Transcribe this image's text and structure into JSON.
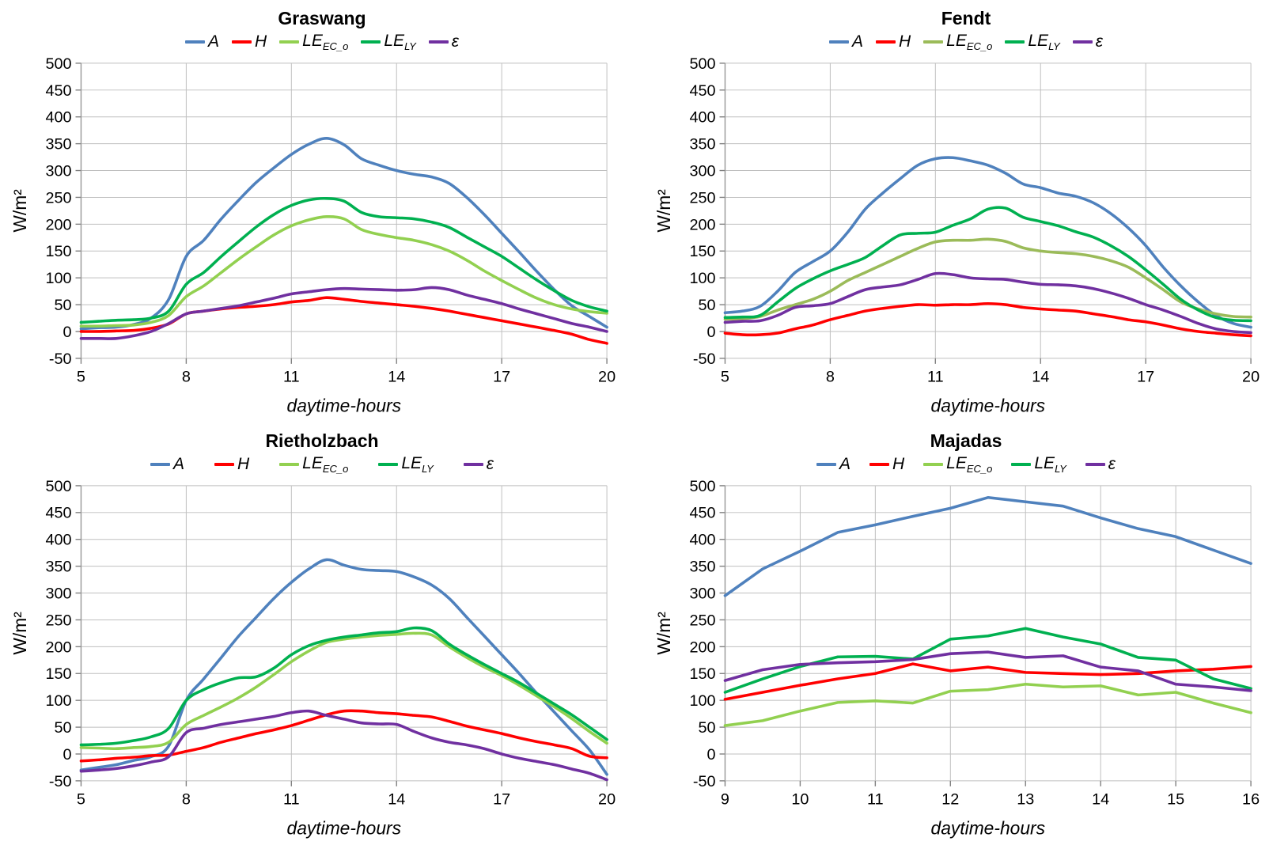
{
  "figure": {
    "ylabel": "W/m²",
    "xlabel": "daytime-hours",
    "colors": {
      "A": "#4F81BD",
      "H": "#FF0000",
      "LE_EC_o": "#92D050",
      "LE_EC_o_fendt": "#9BBB59",
      "LE_LY": "#00B050",
      "epsilon": "#7030A0",
      "gridline": "#BFBFBF",
      "axis": "#969696",
      "tick": "#808080"
    }
  },
  "chart_data": [
    {
      "type": "line",
      "title": "Graswang",
      "xlabel": "daytime-hours",
      "ylabel": "W/m²",
      "xlim": [
        5,
        20
      ],
      "ylim": [
        -50,
        500
      ],
      "xticks": [
        5,
        8,
        11,
        14,
        17,
        20
      ],
      "ytick_step": 50,
      "x_start": 5,
      "x_step": 0.5,
      "smooth": true,
      "legend": [
        {
          "name": "A",
          "sub": "",
          "color": "#4F81BD"
        },
        {
          "name": "H",
          "sub": "",
          "color": "#FF0000"
        },
        {
          "name": "LE",
          "sub": "EC_o",
          "color": "#92D050"
        },
        {
          "name": "LE",
          "sub": "LY",
          "color": "#00B050"
        },
        {
          "name": "ε",
          "sub": "",
          "color": "#7030A0"
        }
      ],
      "series": [
        {
          "name": "A",
          "color": "#4F81BD",
          "values": [
            5,
            7,
            8,
            13,
            25,
            60,
            140,
            170,
            210,
            245,
            278,
            305,
            330,
            349,
            360,
            348,
            322,
            310,
            300,
            293,
            288,
            276,
            250,
            218,
            183,
            148,
            112,
            78,
            48,
            28,
            8
          ]
        },
        {
          "name": "H",
          "color": "#FF0000",
          "values": [
            0,
            0,
            1,
            2,
            6,
            14,
            33,
            38,
            42,
            45,
            47,
            50,
            55,
            58,
            63,
            60,
            56,
            53,
            50,
            47,
            43,
            38,
            32,
            26,
            20,
            14,
            8,
            2,
            -5,
            -15,
            -22
          ]
        },
        {
          "name": "LE_EC_o",
          "color": "#92D050",
          "values": [
            10,
            10,
            11,
            12,
            17,
            30,
            65,
            85,
            110,
            135,
            158,
            180,
            197,
            208,
            214,
            210,
            190,
            181,
            175,
            170,
            162,
            150,
            133,
            113,
            95,
            78,
            62,
            50,
            42,
            37,
            34
          ]
        },
        {
          "name": "LE_LY",
          "color": "#00B050",
          "values": [
            17,
            19,
            21,
            22,
            25,
            38,
            88,
            110,
            140,
            168,
            195,
            218,
            235,
            245,
            248,
            243,
            222,
            214,
            212,
            210,
            204,
            194,
            176,
            158,
            140,
            118,
            96,
            76,
            58,
            46,
            38
          ]
        },
        {
          "name": "ε",
          "color": "#7030A0",
          "values": [
            -13,
            -13,
            -13,
            -8,
            0,
            15,
            33,
            38,
            43,
            48,
            55,
            62,
            70,
            74,
            78,
            80,
            79,
            78,
            77,
            78,
            82,
            78,
            68,
            60,
            52,
            42,
            33,
            24,
            15,
            8,
            0
          ]
        }
      ]
    },
    {
      "type": "line",
      "title": "Fendt",
      "xlabel": "daytime-hours",
      "ylabel": "W/m²",
      "xlim": [
        5,
        20
      ],
      "ylim": [
        -50,
        500
      ],
      "xticks": [
        5,
        8,
        11,
        14,
        17,
        20
      ],
      "ytick_step": 50,
      "x_start": 5,
      "x_step": 0.5,
      "smooth": true,
      "legend": [
        {
          "name": "A",
          "sub": "",
          "color": "#4F81BD"
        },
        {
          "name": "H",
          "sub": "",
          "color": "#FF0000"
        },
        {
          "name": "LE",
          "sub": "EC_o",
          "color": "#9BBB59"
        },
        {
          "name": "LE",
          "sub": "LY",
          "color": "#00B050"
        },
        {
          "name": "ε",
          "sub": "",
          "color": "#7030A0"
        }
      ],
      "series": [
        {
          "name": "A",
          "color": "#4F81BD",
          "values": [
            35,
            38,
            47,
            75,
            110,
            130,
            150,
            185,
            228,
            258,
            285,
            310,
            322,
            324,
            318,
            310,
            295,
            275,
            268,
            258,
            252,
            240,
            220,
            193,
            160,
            120,
            85,
            55,
            30,
            15,
            8
          ]
        },
        {
          "name": "H",
          "color": "#FF0000",
          "values": [
            -3,
            -6,
            -6,
            -3,
            5,
            12,
            22,
            30,
            38,
            43,
            47,
            50,
            49,
            50,
            50,
            52,
            50,
            45,
            42,
            40,
            38,
            33,
            28,
            22,
            18,
            12,
            5,
            0,
            -3,
            -6,
            -8
          ]
        },
        {
          "name": "LE_EC_o",
          "color": "#9BBB59",
          "values": [
            23,
            24,
            28,
            40,
            50,
            60,
            75,
            95,
            110,
            125,
            140,
            155,
            167,
            170,
            170,
            172,
            168,
            156,
            150,
            147,
            145,
            140,
            132,
            120,
            100,
            78,
            55,
            42,
            33,
            28,
            27
          ]
        },
        {
          "name": "LE_LY",
          "color": "#00B050",
          "values": [
            26,
            27,
            30,
            55,
            80,
            98,
            113,
            125,
            138,
            160,
            180,
            183,
            185,
            198,
            210,
            228,
            230,
            213,
            205,
            197,
            186,
            176,
            160,
            140,
            115,
            88,
            60,
            40,
            26,
            21,
            20
          ]
        },
        {
          "name": "ε",
          "color": "#7030A0",
          "values": [
            17,
            19,
            20,
            30,
            45,
            48,
            52,
            65,
            78,
            83,
            87,
            97,
            108,
            106,
            100,
            98,
            97,
            92,
            88,
            87,
            85,
            80,
            72,
            62,
            50,
            40,
            28,
            15,
            5,
            0,
            -2
          ]
        }
      ]
    },
    {
      "type": "line",
      "title": "Rietholzbach",
      "xlabel": "daytime-hours",
      "ylabel": "W/m²",
      "xlim": [
        5,
        20
      ],
      "ylim": [
        -50,
        500
      ],
      "xticks": [
        5,
        8,
        11,
        14,
        17,
        20
      ],
      "ytick_step": 50,
      "x_start": 5,
      "x_step": 0.5,
      "smooth": true,
      "legend": [
        {
          "name": "A",
          "sub": "",
          "color": "#4F81BD"
        },
        {
          "name": "H",
          "sub": "",
          "color": "#FF0000"
        },
        {
          "name": "LE",
          "sub": "EC_o",
          "color": "#92D050"
        },
        {
          "name": "LE",
          "sub": "LY",
          "color": "#00B050"
        },
        {
          "name": "ε",
          "sub": "",
          "color": "#7030A0"
        }
      ],
      "series": [
        {
          "name": "A",
          "color": "#4F81BD",
          "values": [
            -30,
            -25,
            -20,
            -12,
            -5,
            15,
            100,
            140,
            180,
            220,
            255,
            290,
            320,
            345,
            362,
            352,
            344,
            342,
            340,
            330,
            315,
            290,
            255,
            220,
            185,
            150,
            113,
            78,
            43,
            8,
            -38
          ]
        },
        {
          "name": "H",
          "color": "#FF0000",
          "values": [
            -13,
            -11,
            -8,
            -6,
            -3,
            -2,
            5,
            12,
            22,
            30,
            38,
            45,
            53,
            63,
            73,
            80,
            80,
            77,
            75,
            72,
            69,
            61,
            52,
            45,
            38,
            30,
            23,
            17,
            10,
            -4,
            -7
          ]
        },
        {
          "name": "LE_EC_o",
          "color": "#92D050",
          "values": [
            12,
            11,
            10,
            12,
            14,
            22,
            55,
            72,
            88,
            105,
            125,
            148,
            172,
            192,
            208,
            214,
            218,
            221,
            223,
            225,
            222,
            200,
            180,
            162,
            146,
            128,
            108,
            88,
            66,
            42,
            20
          ]
        },
        {
          "name": "LE_LY",
          "color": "#00B050",
          "values": [
            17,
            18,
            20,
            25,
            32,
            48,
            100,
            120,
            133,
            142,
            144,
            160,
            185,
            202,
            212,
            218,
            222,
            226,
            228,
            235,
            230,
            205,
            185,
            167,
            150,
            133,
            113,
            93,
            73,
            50,
            27
          ]
        },
        {
          "name": "ε",
          "color": "#7030A0",
          "values": [
            -32,
            -30,
            -27,
            -22,
            -15,
            -5,
            40,
            48,
            55,
            60,
            65,
            70,
            77,
            80,
            72,
            65,
            58,
            56,
            55,
            42,
            30,
            22,
            17,
            10,
            0,
            -8,
            -14,
            -20,
            -28,
            -36,
            -48
          ]
        }
      ]
    },
    {
      "type": "line",
      "title": "Majadas",
      "xlabel": "daytime-hours",
      "ylabel": "W/m²",
      "xlim": [
        9,
        16
      ],
      "ylim": [
        -50,
        500
      ],
      "xticks": [
        9,
        10,
        11,
        12,
        13,
        14,
        15,
        16
      ],
      "ytick_step": 50,
      "x_start": 9,
      "x_step": 0.5,
      "smooth": false,
      "legend": [
        {
          "name": "A",
          "sub": "",
          "color": "#4F81BD"
        },
        {
          "name": "H",
          "sub": "",
          "color": "#FF0000"
        },
        {
          "name": "LE",
          "sub": "EC_o",
          "color": "#92D050"
        },
        {
          "name": "LE",
          "sub": "LY",
          "color": "#00B050"
        },
        {
          "name": "ε",
          "sub": "",
          "color": "#7030A0"
        }
      ],
      "series": [
        {
          "name": "A",
          "color": "#4F81BD",
          "values": [
            295,
            345,
            378,
            413,
            427,
            443,
            458,
            478,
            470,
            462,
            440,
            420,
            405,
            380,
            355
          ]
        },
        {
          "name": "H",
          "color": "#FF0000",
          "values": [
            102,
            115,
            128,
            140,
            150,
            168,
            155,
            162,
            152,
            150,
            148,
            150,
            155,
            158,
            163
          ]
        },
        {
          "name": "LE_EC_o",
          "color": "#92D050",
          "values": [
            53,
            62,
            80,
            96,
            99,
            95,
            117,
            120,
            130,
            125,
            127,
            110,
            115,
            95,
            77
          ]
        },
        {
          "name": "LE_LY",
          "color": "#00B050",
          "values": [
            115,
            140,
            163,
            181,
            182,
            177,
            214,
            220,
            234,
            218,
            205,
            180,
            175,
            140,
            122
          ]
        },
        {
          "name": "ε",
          "color": "#7030A0",
          "values": [
            137,
            157,
            167,
            170,
            172,
            176,
            187,
            190,
            180,
            183,
            162,
            155,
            130,
            125,
            118
          ]
        }
      ]
    }
  ]
}
